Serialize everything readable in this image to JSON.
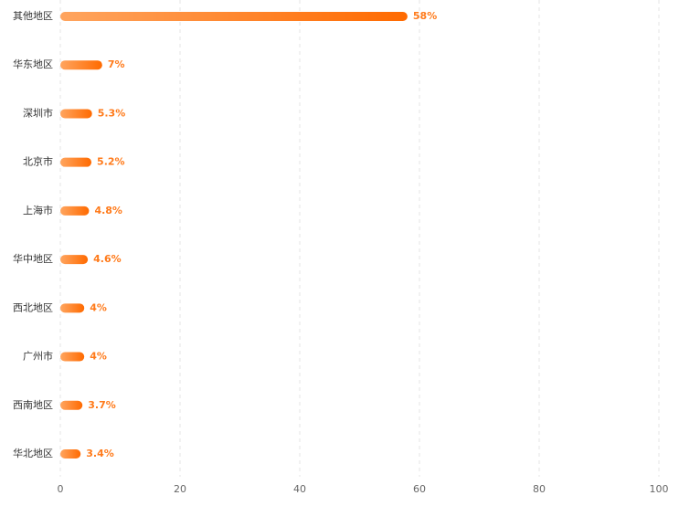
{
  "chart_data": {
    "type": "hbar",
    "categories": [
      "其他地区",
      "华东地区",
      "深圳市",
      "北京市",
      "上海市",
      "华中地区",
      "西北地区",
      "广州市",
      "西南地区",
      "华北地区"
    ],
    "values": [
      58,
      7,
      5.3,
      5.2,
      4.8,
      4.6,
      4,
      4,
      3.7,
      3.4
    ],
    "value_labels": [
      "58%",
      "7%",
      "5.3%",
      "5.2%",
      "4.8%",
      "4.6%",
      "4%",
      "4%",
      "3.7%",
      "3.4%"
    ],
    "color": "#ff6a00",
    "gradient_start": "#ffa55f",
    "label_color": "#ff7a1a",
    "xlim": [
      0,
      100
    ],
    "xticks": [
      0,
      20,
      40,
      60,
      80,
      100
    ],
    "grid": true
  }
}
